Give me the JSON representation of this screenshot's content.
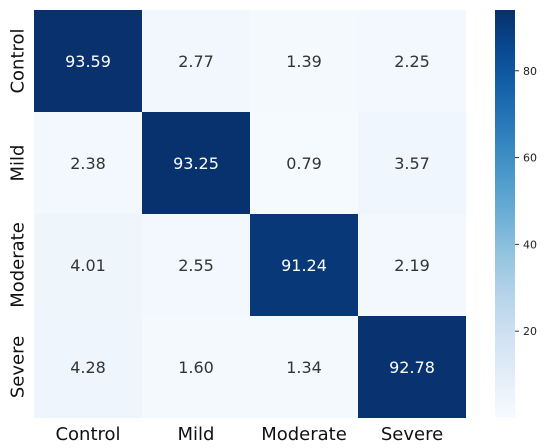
{
  "chart_data": {
    "type": "heatmap",
    "rows": [
      "Control",
      "Mild",
      "Moderate",
      "Severe"
    ],
    "columns": [
      "Control",
      "Mild",
      "Moderate",
      "Severe"
    ],
    "values": [
      [
        93.59,
        2.77,
        1.39,
        2.25
      ],
      [
        2.38,
        93.25,
        0.79,
        3.57
      ],
      [
        4.01,
        2.55,
        91.24,
        2.19
      ],
      [
        4.28,
        1.6,
        1.34,
        92.78
      ]
    ],
    "value_labels": [
      [
        "93.59",
        "2.77",
        "1.39",
        "2.25"
      ],
      [
        "2.38",
        "93.25",
        "0.79",
        "3.57"
      ],
      [
        "4.01",
        "2.55",
        "91.24",
        "2.19"
      ],
      [
        "4.28",
        "1.60",
        "1.34",
        "92.78"
      ]
    ],
    "colorbar": {
      "min": 0,
      "max": 94,
      "ticks": [
        20,
        40,
        60,
        80
      ],
      "tick_labels": [
        "20",
        "40",
        "60",
        "80"
      ],
      "colormap": "Blues",
      "color_low": "#f7fbff",
      "color_high": "#08306b"
    },
    "text_color_dark": "#333333",
    "text_color_light": "#ffffff"
  }
}
